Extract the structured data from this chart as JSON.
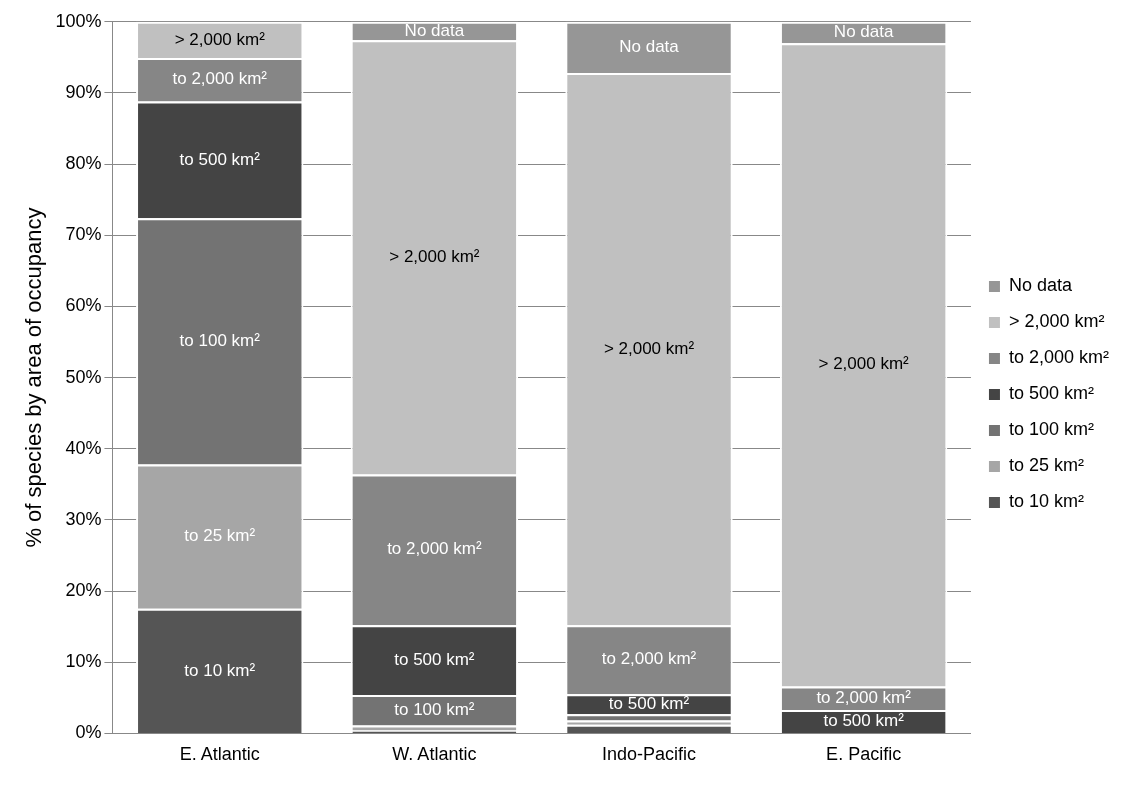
{
  "chart_data": {
    "type": "bar",
    "stacked": true,
    "ylabel": "% of species by area of occupancy",
    "categories": [
      "E. Atlantic",
      "W. Atlantic",
      "Indo-Pacific",
      "E. Pacific"
    ],
    "ylim": [
      0,
      100
    ],
    "yticks": [
      {
        "value": 0,
        "label": "0%"
      },
      {
        "value": 10,
        "label": "10%"
      },
      {
        "value": 20,
        "label": "20%"
      },
      {
        "value": 30,
        "label": "30%"
      },
      {
        "value": 40,
        "label": "40%"
      },
      {
        "value": 50,
        "label": "50%"
      },
      {
        "value": 60,
        "label": "60%"
      },
      {
        "value": 70,
        "label": "70%"
      },
      {
        "value": 80,
        "label": "80%"
      },
      {
        "value": 90,
        "label": "90%"
      },
      {
        "value": 100,
        "label": "100%"
      }
    ],
    "grid": "y",
    "legend": "right",
    "series": [
      {
        "name": "to 10 km²",
        "color": "#555555",
        "values": [
          17.5,
          0.4,
          1.2,
          0
        ],
        "value_labels": [
          "to 10 km²",
          null,
          null,
          null
        ]
      },
      {
        "name": "to 25 km²",
        "color": "#a6a6a6",
        "values": [
          20.3,
          0.7,
          0.6,
          0
        ],
        "value_labels": [
          "to 25 km²",
          null,
          null,
          null
        ]
      },
      {
        "name": "to 100 km²",
        "color": "#737373",
        "values": [
          34.6,
          4.3,
          0.9,
          0
        ],
        "value_labels": [
          "to 100 km²",
          "to 100 km²",
          null,
          null
        ]
      },
      {
        "name": "to 500 km²",
        "color": "#444444",
        "values": [
          16.4,
          9.8,
          2.8,
          3.3
        ],
        "value_labels": [
          "to 500 km²",
          "to 500 km²",
          "to 500 km²",
          "to 500 km²"
        ]
      },
      {
        "name": "to 2,000 km²",
        "color": "#868686",
        "values": [
          6.1,
          21.2,
          9.7,
          3.3
        ],
        "value_labels": [
          "to 2,000 km²",
          "to 2,000 km²",
          "to 2,000 km²",
          "to 2,000 km²"
        ]
      },
      {
        "name": "> 2,000 km²",
        "color": "#c0c0c0",
        "values": [
          5.1,
          61.0,
          77.6,
          90.4
        ],
        "value_labels": [
          "> 2,000 km²",
          "> 2,000 km²",
          "> 2,000 km²",
          "> 2,000 km²"
        ]
      },
      {
        "name": "No data",
        "color": "#969696",
        "values": [
          0,
          2.6,
          7.2,
          3.0
        ],
        "value_labels": [
          null,
          "No data",
          "No data",
          "No data"
        ]
      }
    ]
  }
}
